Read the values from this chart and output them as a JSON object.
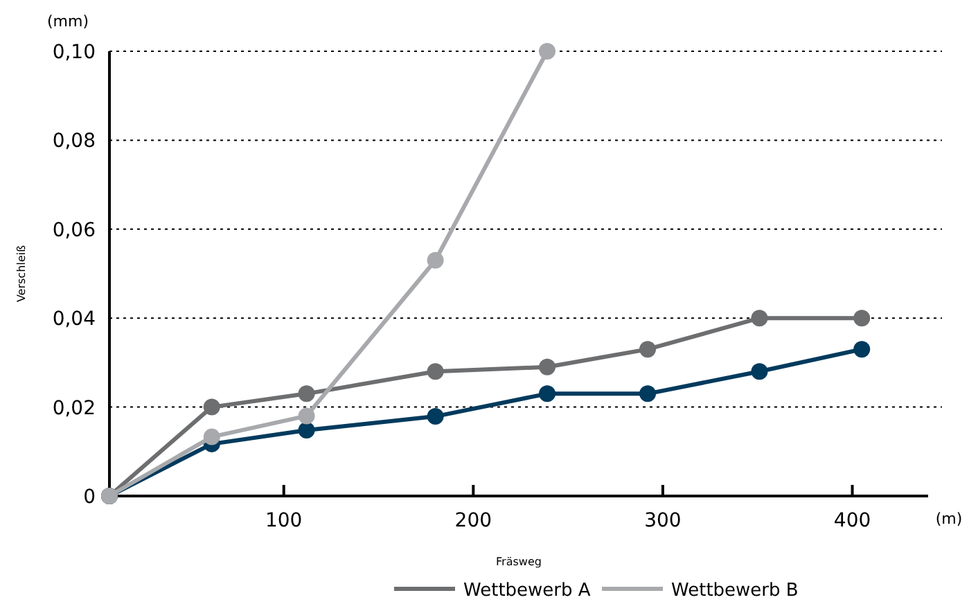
{
  "chart_data": {
    "type": "line",
    "xlabel": "Fräsweg",
    "ylabel": "Verschleiß",
    "annotations": [
      "(mm)",
      "(m)"
    ],
    "xlim": [
      8,
      440
    ],
    "xticks": [
      100,
      200,
      300,
      400
    ],
    "ylim": [
      0,
      0.1
    ],
    "yticks": [
      {
        "value": 0,
        "label": "0"
      },
      {
        "value": 0.02,
        "label": "0,02"
      },
      {
        "value": 0.04,
        "label": "0,04"
      },
      {
        "value": 0.06,
        "label": "0,06"
      },
      {
        "value": 0.08,
        "label": "0,08"
      },
      {
        "value": 0.1,
        "label": "0,10"
      }
    ],
    "grid": "y",
    "legend": "bottom",
    "marker": "circle",
    "line_style": "solid",
    "series": [
      {
        "color": "#003a5d",
        "x": [
          8,
          62,
          112,
          180,
          239,
          292,
          351,
          405
        ],
        "values": [
          0,
          0.0117,
          0.0148,
          0.0179,
          0.023,
          0.023,
          0.028,
          0.033
        ]
      },
      {
        "name": "Wettbewerb A",
        "color": "#6d6e70",
        "x": [
          8,
          62,
          112,
          180,
          239,
          292,
          351,
          405
        ],
        "values": [
          0,
          0.02,
          0.023,
          0.028,
          0.029,
          0.033,
          0.04,
          0.04
        ]
      },
      {
        "name": "Wettbewerb B",
        "color": "#a7a9ac",
        "x": [
          8,
          62,
          112,
          180,
          239
        ],
        "values": [
          0,
          0.0133,
          0.018,
          0.053,
          0.1
        ]
      }
    ]
  }
}
